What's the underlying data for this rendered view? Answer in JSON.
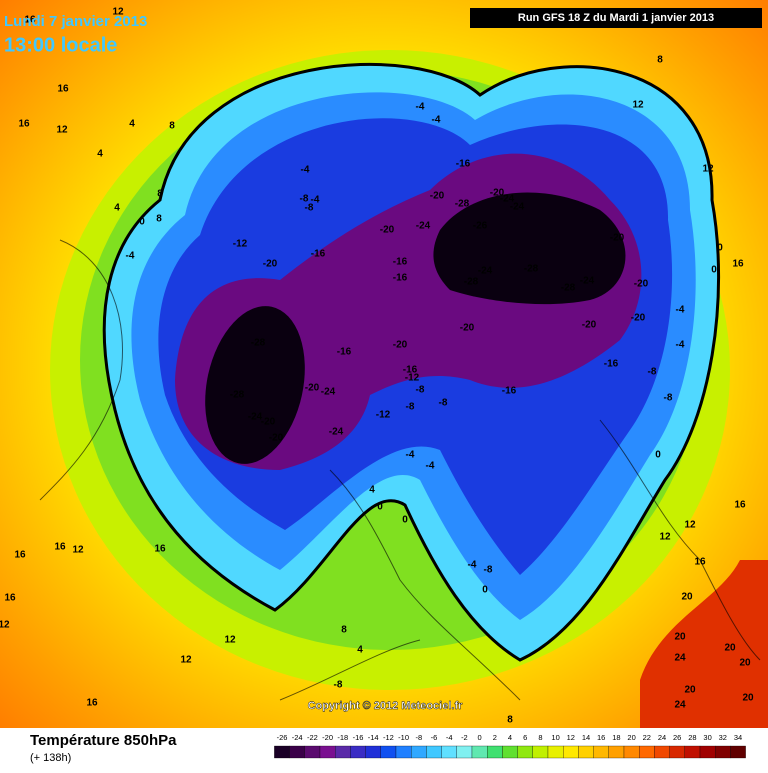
{
  "header": {
    "valid_date": "Lundi 7 janvier 2013",
    "local_time": "13:00 locale",
    "run": "Run GFS 18 Z du Mardi 1 janvier 2013"
  },
  "footer": {
    "title": "Température 850hPa",
    "lead": "(+ 138h)",
    "copyright": "Copyright © 2012 Meteociel.fr"
  },
  "scale": {
    "values": [
      -26,
      -24,
      -22,
      -20,
      -18,
      -16,
      -14,
      -12,
      -10,
      -8,
      -6,
      -4,
      -2,
      0,
      2,
      4,
      6,
      8,
      10,
      12,
      14,
      16,
      18,
      20,
      22,
      24,
      26,
      28,
      30,
      32,
      34
    ],
    "colors": [
      "#1a0026",
      "#3a0048",
      "#5a0a6e",
      "#7a1090",
      "#5a2aa8",
      "#3a2cc4",
      "#2030d8",
      "#1050f0",
      "#2080ff",
      "#30a8ff",
      "#40c8ff",
      "#60e0ff",
      "#80f0f0",
      "#60e8b0",
      "#40e070",
      "#60e030",
      "#90e810",
      "#c0f000",
      "#e8f000",
      "#ffe800",
      "#ffd000",
      "#ffb800",
      "#ffa000",
      "#ff8800",
      "#ff6800",
      "#f04800",
      "#d82800",
      "#c01000",
      "#a00000",
      "#800000",
      "#600000"
    ]
  },
  "map_labels": [
    -28,
    -28,
    -24,
    -20,
    -20,
    -20,
    -24,
    -24,
    -16,
    -20,
    -16,
    -12,
    -8,
    -8,
    -12,
    -8,
    -20,
    -16,
    -12,
    -20,
    -24,
    -16,
    -16,
    -20,
    -28,
    -26,
    -20,
    -24,
    -24,
    -28,
    -24,
    -28,
    -28,
    -24,
    -20,
    -20,
    -20,
    -20,
    -20,
    -16,
    -16,
    -16,
    -4,
    -4,
    -4,
    -8,
    -4,
    -8,
    -4,
    0,
    8,
    8,
    4,
    4,
    4,
    8,
    16,
    16,
    12,
    -8,
    -4,
    -4,
    -8,
    0,
    0,
    0,
    12,
    16,
    16,
    12,
    16,
    12,
    20,
    20,
    24,
    20,
    20,
    20,
    20,
    24,
    -4,
    -4,
    0,
    0,
    4,
    -4,
    -8,
    0,
    8,
    4,
    -8,
    12,
    12,
    16,
    16,
    16,
    16,
    12,
    16,
    12,
    8,
    8,
    12,
    16,
    12
  ]
}
